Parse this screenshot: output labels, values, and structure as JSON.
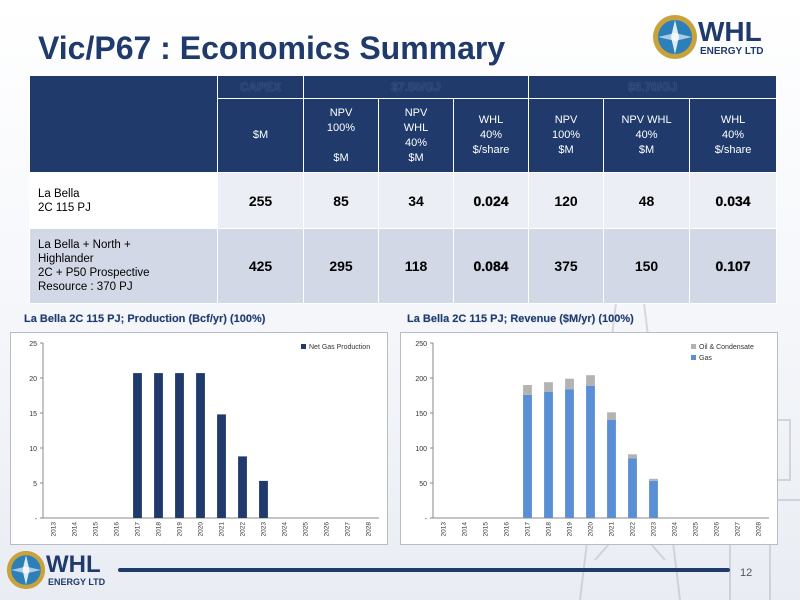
{
  "title": "Vic/P67 : Economics Summary",
  "logo": {
    "name": "WHL",
    "sub": "ENERGY LTD"
  },
  "page_number": "12",
  "table": {
    "group_headers": [
      "CAPEX",
      "$7.50/GJ",
      "$6.70/GJ"
    ],
    "sub_headers": [
      "$M",
      "NPV\n100%\n\n$M",
      "NPV\nWHL\n40%\n$M",
      "WHL\n40%\n$/share",
      "NPV\n100%\n$M",
      "NPV WHL\n40%\n$M",
      "WHL\n40%\n$/share"
    ],
    "rows": [
      {
        "label": "La Bella\n2C 115 PJ",
        "values": [
          "255",
          "85",
          "34",
          "0.024",
          "120",
          "48",
          "0.034"
        ]
      },
      {
        "label": "La Bella + North +\nHighlander\n2C + P50 Prospective\nResource : 370 PJ",
        "values": [
          "425",
          "295",
          "118",
          "0.084",
          "375",
          "150",
          "0.107"
        ]
      }
    ]
  },
  "chart_captions": {
    "production": "La Bella 2C 115 PJ;   Production (Bcf/yr) (100%)",
    "revenue": "La Bella 2C 115 PJ;   Revenue ($M/yr) (100%)"
  },
  "chart_data": [
    {
      "type": "bar",
      "title": "",
      "xlabel": "",
      "ylabel": "",
      "categories": [
        "2013",
        "2014",
        "2015",
        "2016",
        "2017",
        "2018",
        "2019",
        "2020",
        "2021",
        "2022",
        "2023",
        "2024",
        "2025",
        "2026",
        "2027",
        "2028"
      ],
      "series": [
        {
          "name": "Net Gas Production",
          "values": [
            0,
            0,
            0,
            0,
            20.7,
            20.7,
            20.7,
            20.7,
            14.8,
            8.8,
            5.3,
            0,
            0,
            0,
            0,
            0
          ]
        }
      ],
      "ylim": [
        0,
        25
      ],
      "yticks": [
        "-",
        "5",
        "10",
        "15",
        "20",
        "25"
      ],
      "legend": "top-right",
      "grid": false,
      "colors": [
        "#1f3a6b"
      ]
    },
    {
      "type": "bar",
      "stacked": true,
      "title": "",
      "xlabel": "",
      "ylabel": "",
      "categories": [
        "2013",
        "2014",
        "2015",
        "2016",
        "2017",
        "2018",
        "2019",
        "2020",
        "2021",
        "2022",
        "2023",
        "2024",
        "2025",
        "2026",
        "2027",
        "2028"
      ],
      "series": [
        {
          "name": "Gas",
          "values": [
            0,
            0,
            0,
            0,
            176,
            180,
            184,
            189,
            140,
            85,
            53,
            0,
            0,
            0,
            0,
            0
          ]
        },
        {
          "name": "Oil & Condensate",
          "values": [
            0,
            0,
            0,
            0,
            14,
            14,
            15,
            15,
            11,
            6,
            3,
            0,
            0,
            0,
            0,
            0
          ]
        }
      ],
      "ylim": [
        0,
        250
      ],
      "yticks": [
        "-",
        "50",
        "100",
        "150",
        "200",
        "250"
      ],
      "legend": "top-right",
      "grid": false,
      "colors": [
        "#5a8fd6",
        "#b3b3b3"
      ]
    }
  ]
}
